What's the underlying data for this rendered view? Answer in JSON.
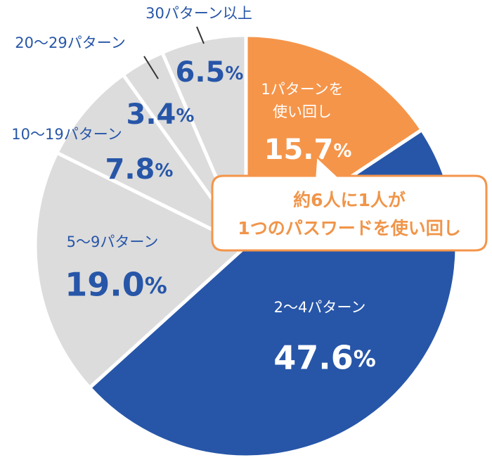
{
  "chart_data": {
    "type": "pie",
    "start_angle_deg": 0,
    "direction": "clockwise",
    "slices": [
      {
        "label_lines": [
          "1パターンを",
          "使い回し"
        ],
        "value": 15.7,
        "value_label": "15.7",
        "unit": "%",
        "color": "#f5954a",
        "text_color": "#ffffff"
      },
      {
        "label_lines": [
          "2〜4パターン"
        ],
        "value": 47.6,
        "value_label": "47.6",
        "unit": "%",
        "color": "#2756a8",
        "text_color": "#ffffff"
      },
      {
        "label_lines": [
          "5〜9パターン"
        ],
        "value": 19.0,
        "value_label": "19.0",
        "unit": "%",
        "color": "#dcdcdc",
        "text_color": "#2756a8"
      },
      {
        "label_lines": [
          "10〜19パターン"
        ],
        "value": 7.8,
        "value_label": "7.8",
        "unit": "%",
        "color": "#dcdcdc",
        "text_color": "#2756a8"
      },
      {
        "label_lines": [
          "20〜29パターン"
        ],
        "value": 3.4,
        "value_label": "3.4",
        "unit": "%",
        "color": "#dcdcdc",
        "text_color": "#2756a8"
      },
      {
        "label_lines": [
          "30パターン以上"
        ],
        "value": 6.5,
        "value_label": "6.5",
        "unit": "%",
        "color": "#dcdcdc",
        "text_color": "#2756a8"
      }
    ],
    "callout": {
      "lines": [
        "約6人に1人が",
        "1つのパスワードを使い回し"
      ],
      "text_color": "#f0954a",
      "border_color": "#f5954a"
    }
  }
}
